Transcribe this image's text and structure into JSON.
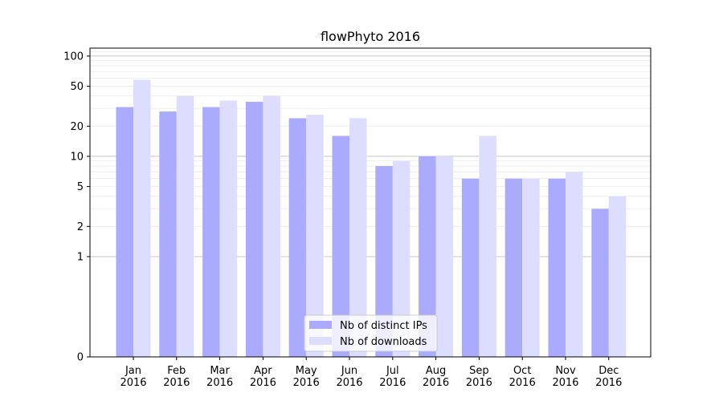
{
  "chart_data": {
    "type": "bar",
    "title": "flowPhyto 2016",
    "xlabel": "",
    "ylabel": "",
    "yscale": "symlog",
    "ylim": [
      0,
      120
    ],
    "yticks": [
      0,
      1,
      2,
      5,
      10,
      20,
      50,
      100
    ],
    "ytick_labels": [
      "0",
      "1",
      "2",
      "5",
      "10",
      "20",
      "50",
      "100"
    ],
    "grid": true,
    "legend_position": "bottom-center",
    "categories": [
      "Jan\n2016",
      "Feb\n2016",
      "Mar\n2016",
      "Apr\n2016",
      "May\n2016",
      "Jun\n2016",
      "Jul\n2016",
      "Aug\n2016",
      "Sep\n2016",
      "Oct\n2016",
      "Nov\n2016",
      "Dec\n2016"
    ],
    "category_lines": [
      [
        "Jan",
        "2016"
      ],
      [
        "Feb",
        "2016"
      ],
      [
        "Mar",
        "2016"
      ],
      [
        "Apr",
        "2016"
      ],
      [
        "May",
        "2016"
      ],
      [
        "Jun",
        "2016"
      ],
      [
        "Jul",
        "2016"
      ],
      [
        "Aug",
        "2016"
      ],
      [
        "Sep",
        "2016"
      ],
      [
        "Oct",
        "2016"
      ],
      [
        "Nov",
        "2016"
      ],
      [
        "Dec",
        "2016"
      ]
    ],
    "series": [
      {
        "name": "Nb of distinct IPs",
        "color": "#aaaaff",
        "values": [
          31,
          28,
          31,
          35,
          24,
          16,
          8,
          10,
          6,
          6,
          6,
          3
        ]
      },
      {
        "name": "Nb of downloads",
        "color": "#ddddff",
        "values": [
          58,
          40,
          36,
          40,
          26,
          24,
          9,
          10,
          16,
          6,
          7,
          4
        ]
      }
    ]
  }
}
